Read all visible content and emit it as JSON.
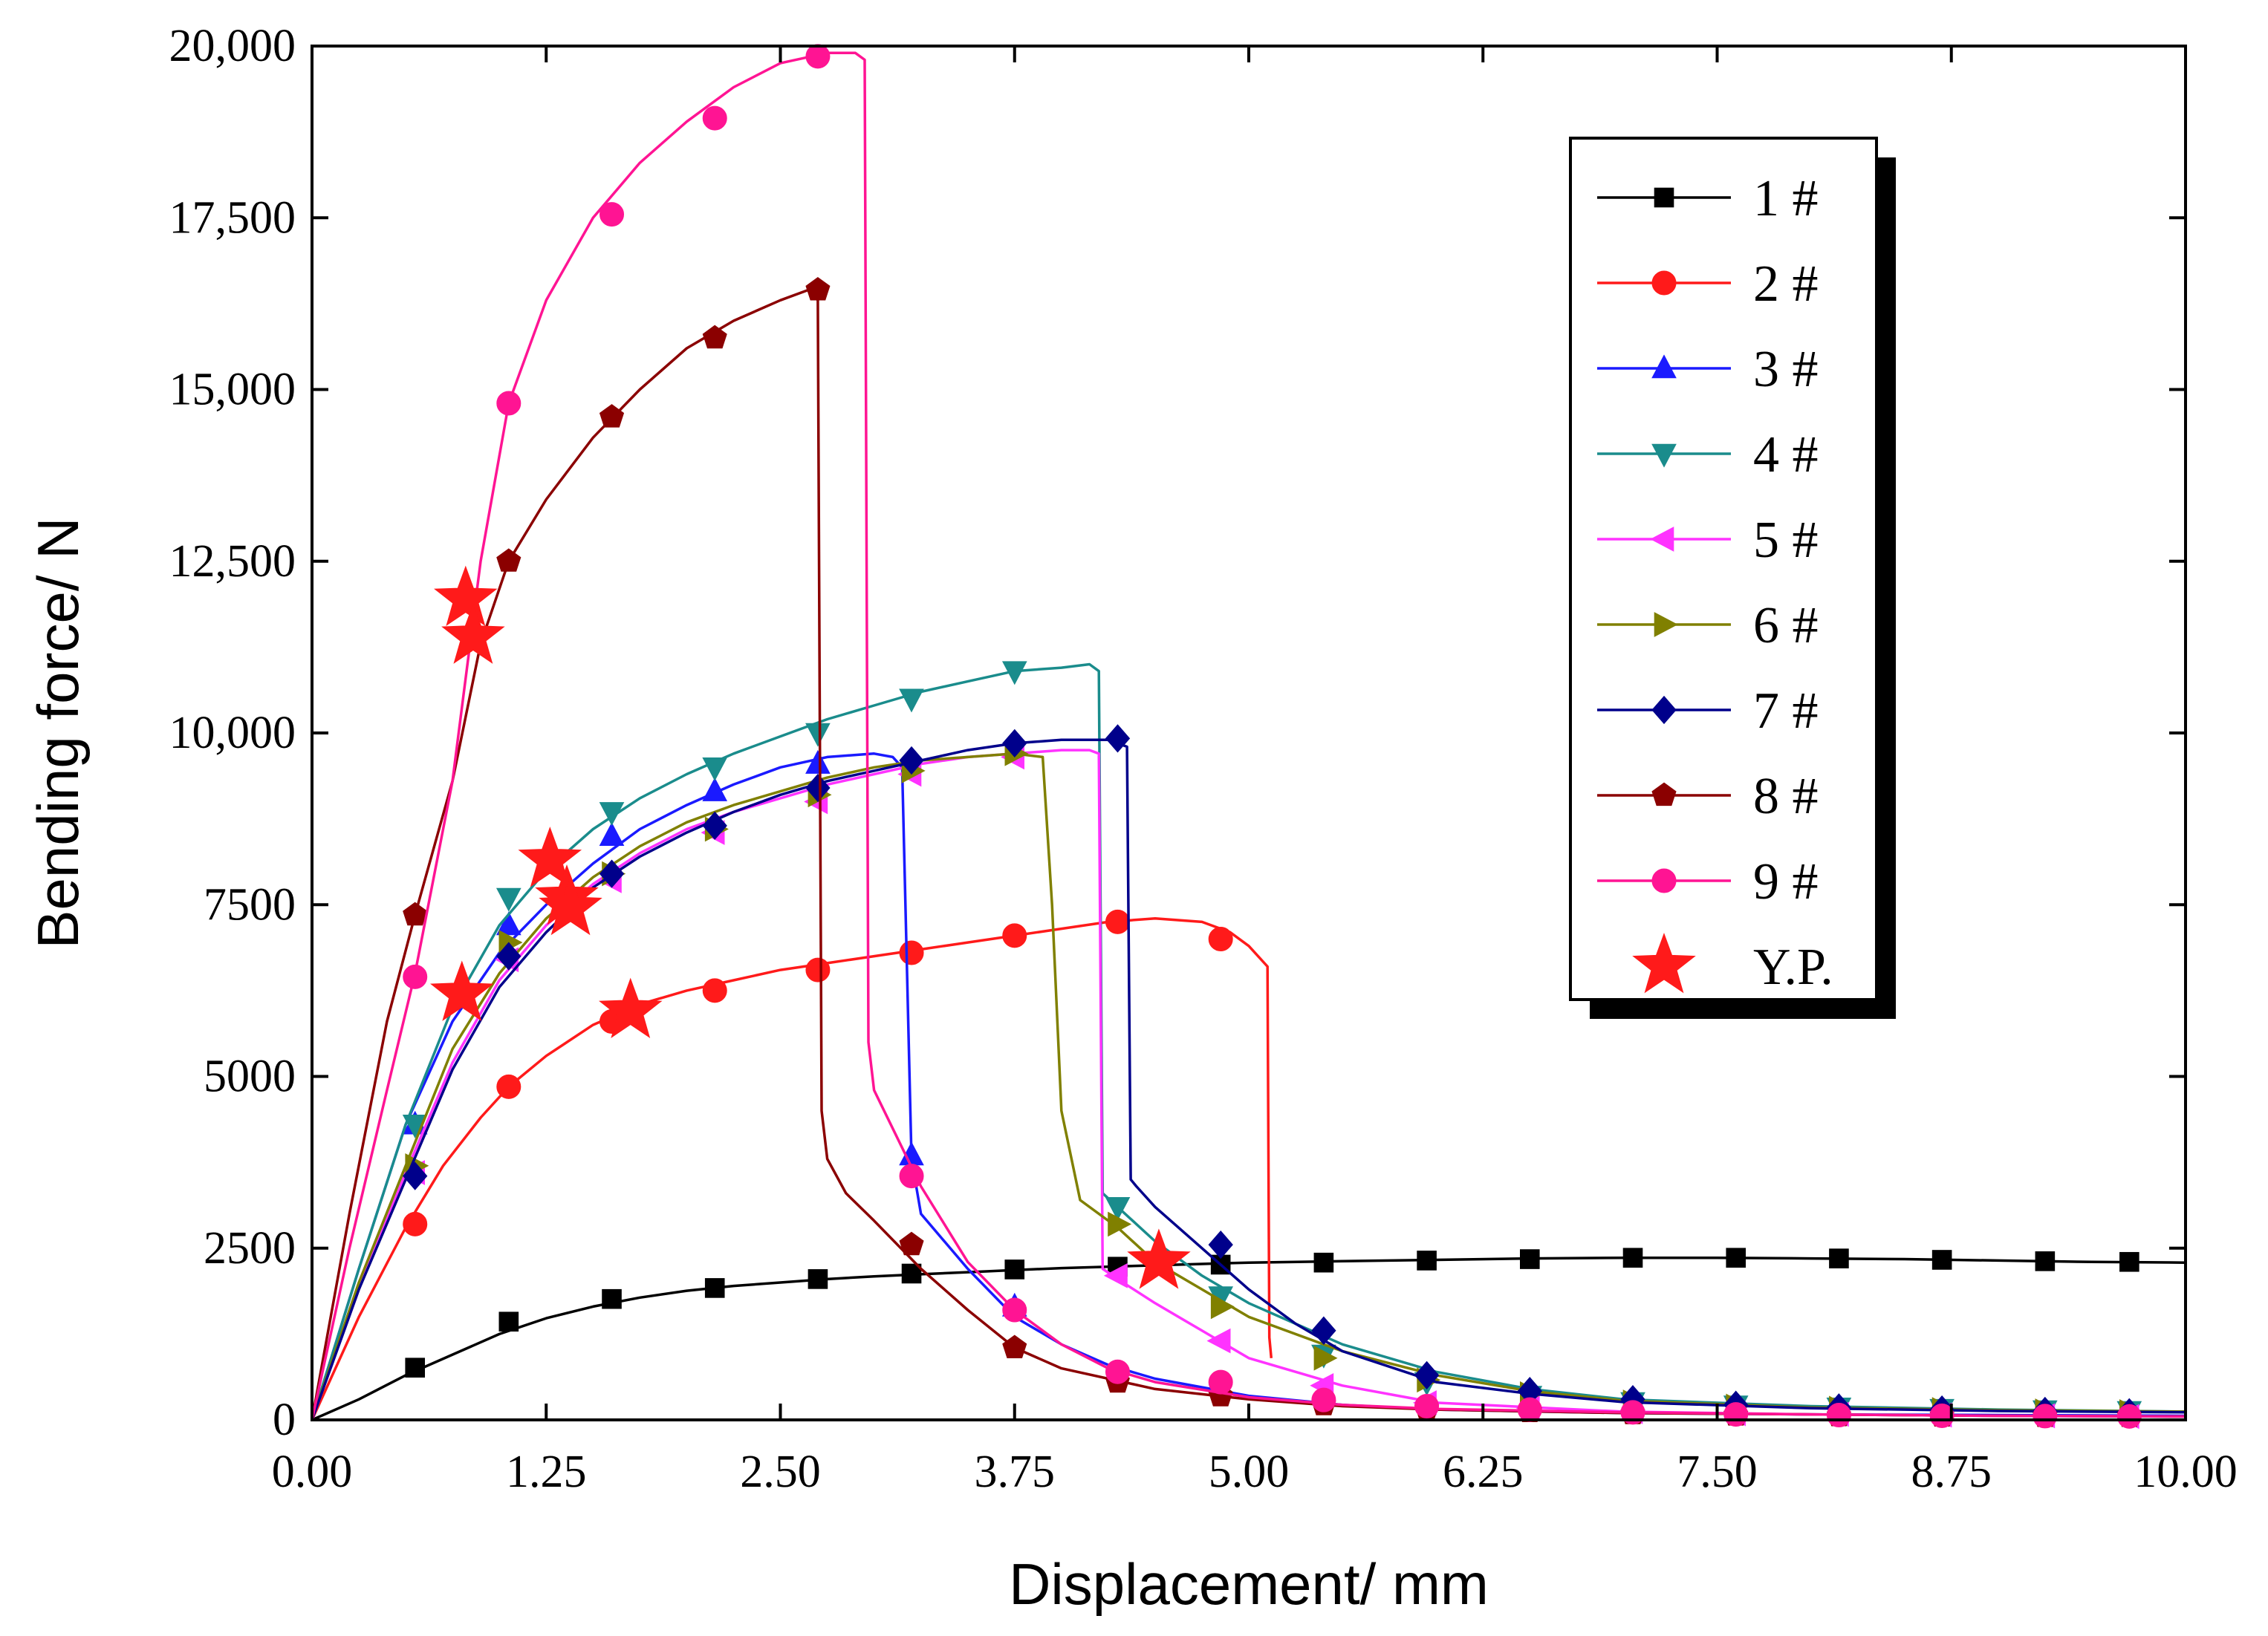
{
  "chart_data": {
    "type": "line",
    "xlabel": "Displacement/ mm",
    "ylabel": "Bending force/ N",
    "xlim": [
      0,
      10
    ],
    "ylim": [
      0,
      20000
    ],
    "xticks": [
      0,
      1.25,
      2.5,
      3.75,
      5,
      6.25,
      7.5,
      8.75,
      10
    ],
    "xtick_labels": [
      "0.00",
      "1.25",
      "2.50",
      "3.75",
      "5.00",
      "6.25",
      "7.50",
      "8.75",
      "10.00"
    ],
    "yticks": [
      0,
      2500,
      5000,
      7500,
      10000,
      12500,
      15000,
      17500,
      20000
    ],
    "ytick_labels": [
      "0",
      "2500",
      "5000",
      "7500",
      "10,000",
      "12,500",
      "15,000",
      "17,500",
      "20,000"
    ],
    "legend_position": "top-right",
    "series": [
      {
        "name": "1 #",
        "color": "#000000",
        "marker": "square",
        "x": [
          0,
          0.25,
          0.5,
          0.75,
          1.0,
          1.25,
          1.5,
          1.75,
          2.0,
          2.25,
          2.5,
          2.75,
          3.0,
          3.25,
          3.5,
          3.75,
          4.0,
          4.25,
          4.5,
          4.75,
          5.0,
          5.5,
          6.0,
          6.5,
          7.0,
          7.5,
          8.0,
          8.5,
          9.0,
          9.5,
          10.0
        ],
        "y": [
          0,
          300,
          650,
          950,
          1250,
          1480,
          1650,
          1780,
          1880,
          1950,
          2000,
          2050,
          2090,
          2120,
          2150,
          2180,
          2210,
          2230,
          2250,
          2270,
          2290,
          2310,
          2330,
          2350,
          2360,
          2360,
          2350,
          2340,
          2320,
          2300,
          2290
        ],
        "marker_x": [
          0.55,
          1.05,
          1.6,
          2.15,
          2.7,
          3.2,
          3.75,
          4.3,
          4.85,
          5.4,
          5.95,
          6.5,
          7.05,
          7.6,
          8.15,
          8.7,
          9.25,
          9.7
        ],
        "marker_y": [
          760,
          1430,
          1760,
          1920,
          2050,
          2130,
          2190,
          2230,
          2260,
          2290,
          2320,
          2340,
          2360,
          2360,
          2350,
          2330,
          2310,
          2300
        ]
      },
      {
        "name": "2 #",
        "color": "#ff1a1a",
        "marker": "circle",
        "x": [
          0,
          0.25,
          0.5,
          0.7,
          0.9,
          1.05,
          1.25,
          1.5,
          1.75,
          2.0,
          2.25,
          2.5,
          2.75,
          3.0,
          3.25,
          3.5,
          3.75,
          4.0,
          4.25,
          4.5,
          4.75,
          4.9,
          5.0,
          5.1,
          5.11,
          5.12
        ],
        "y": [
          0,
          1500,
          2800,
          3700,
          4400,
          4850,
          5300,
          5750,
          6050,
          6250,
          6400,
          6550,
          6650,
          6750,
          6850,
          6950,
          7050,
          7150,
          7250,
          7300,
          7250,
          7100,
          6900,
          6600,
          1200,
          900
        ],
        "marker_x": [
          0.55,
          1.05,
          1.6,
          2.15,
          2.7,
          3.2,
          3.75,
          4.3,
          4.85
        ],
        "marker_y": [
          2850,
          4850,
          5800,
          6250,
          6550,
          6800,
          7050,
          7250,
          7000
        ]
      },
      {
        "name": "3 #",
        "color": "#1a1aff",
        "marker": "triangle-up",
        "x": [
          0,
          0.25,
          0.5,
          0.75,
          1.0,
          1.25,
          1.5,
          1.75,
          2.0,
          2.25,
          2.5,
          2.75,
          3.0,
          3.1,
          3.15,
          3.2,
          3.25,
          3.5,
          3.75,
          4.0,
          4.25,
          4.5,
          5.0,
          5.5,
          6.0,
          7.0,
          8.0,
          9.0,
          10.0
        ],
        "y": [
          0,
          2200,
          4300,
          5800,
          6800,
          7500,
          8100,
          8600,
          8950,
          9250,
          9500,
          9650,
          9700,
          9650,
          9500,
          3800,
          3000,
          2200,
          1500,
          1100,
          800,
          600,
          350,
          220,
          150,
          100,
          80,
          70,
          60
        ],
        "marker_x": [
          0.55,
          1.05,
          1.6,
          2.15,
          2.7,
          3.2,
          3.75
        ],
        "marker_y": [
          4300,
          7200,
          8500,
          9150,
          9550,
          3850,
          1650
        ]
      },
      {
        "name": "4 #",
        "color": "#1a8c8c",
        "marker": "triangle-down",
        "x": [
          0,
          0.25,
          0.5,
          0.75,
          1.0,
          1.25,
          1.5,
          1.75,
          2.0,
          2.25,
          2.5,
          2.75,
          3.0,
          3.25,
          3.5,
          3.75,
          4.0,
          4.15,
          4.2,
          4.22,
          4.3,
          4.5,
          4.75,
          5.0,
          5.5,
          6.0,
          6.5,
          7.0,
          8.0,
          9.0,
          10.0
        ],
        "y": [
          0,
          2200,
          4300,
          6000,
          7200,
          8000,
          8600,
          9050,
          9400,
          9700,
          9950,
          10200,
          10400,
          10600,
          10750,
          10900,
          10950,
          11000,
          10900,
          3300,
          3100,
          2600,
          2100,
          1700,
          1100,
          700,
          450,
          300,
          200,
          150,
          120
        ],
        "marker_x": [
          0.55,
          1.05,
          1.6,
          2.15,
          2.7,
          3.2,
          3.75,
          4.3,
          4.85,
          5.4,
          5.95,
          6.5,
          7.05,
          7.6,
          8.15,
          8.7,
          9.25,
          9.7
        ],
        "marker_y": [
          4300,
          7600,
          8850,
          9500,
          10000,
          10500,
          10900,
          3100,
          1800,
          950,
          550,
          350,
          260,
          210,
          180,
          160,
          140,
          130
        ]
      },
      {
        "name": "5 #",
        "color": "#ff33ff",
        "marker": "triangle-left",
        "x": [
          0,
          0.25,
          0.5,
          0.75,
          1.0,
          1.25,
          1.5,
          1.75,
          2.0,
          2.25,
          2.5,
          2.75,
          3.0,
          3.25,
          3.5,
          3.75,
          4.0,
          4.15,
          4.2,
          4.22,
          4.3,
          4.5,
          4.75,
          5.0,
          5.5,
          6.0,
          7.0,
          8.0,
          9.0,
          10.0
        ],
        "y": [
          0,
          1900,
          3600,
          5200,
          6400,
          7200,
          7800,
          8250,
          8600,
          8850,
          9050,
          9250,
          9400,
          9550,
          9650,
          9700,
          9750,
          9750,
          9700,
          2200,
          2050,
          1700,
          1300,
          900,
          500,
          250,
          120,
          80,
          60,
          50
        ],
        "marker_x": [
          0.55,
          1.05,
          1.6,
          2.15,
          2.7,
          3.2,
          3.75,
          4.3,
          4.85,
          5.4,
          5.95,
          6.5,
          7.05,
          7.6,
          8.15,
          8.7,
          9.25,
          9.7
        ],
        "marker_y": [
          3600,
          6700,
          7850,
          8550,
          9000,
          9400,
          9650,
          2100,
          1150,
          500,
          250,
          170,
          120,
          90,
          80,
          70,
          60,
          50
        ]
      },
      {
        "name": "6 #",
        "color": "#808000",
        "marker": "triangle-right",
        "x": [
          0,
          0.25,
          0.5,
          0.75,
          1.0,
          1.25,
          1.5,
          1.75,
          2.0,
          2.25,
          2.5,
          2.75,
          3.0,
          3.25,
          3.5,
          3.75,
          3.9,
          3.95,
          4.0,
          4.1,
          4.3,
          4.5,
          4.75,
          5.0,
          5.5,
          6.0,
          6.5,
          7.0,
          8.0,
          9.0,
          10.0
        ],
        "y": [
          0,
          2000,
          3700,
          5400,
          6500,
          7300,
          7900,
          8350,
          8700,
          8950,
          9150,
          9350,
          9500,
          9600,
          9650,
          9700,
          9650,
          7500,
          4500,
          3200,
          2800,
          2300,
          1900,
          1500,
          1000,
          650,
          420,
          280,
          180,
          140,
          120
        ],
        "marker_x": [
          0.55,
          1.05,
          1.6,
          2.15,
          2.7,
          3.2,
          3.75,
          4.3,
          4.85,
          5.4,
          5.95,
          6.5,
          7.05,
          7.6,
          8.15,
          8.7,
          9.25,
          9.7
        ],
        "marker_y": [
          3700,
          6950,
          7950,
          8600,
          9100,
          9450,
          9700,
          2850,
          1650,
          900,
          580,
          380,
          260,
          200,
          170,
          150,
          130,
          120
        ]
      },
      {
        "name": "7 #",
        "color": "#00008b",
        "marker": "diamond",
        "x": [
          0,
          0.25,
          0.5,
          0.75,
          1.0,
          1.25,
          1.5,
          1.75,
          2.0,
          2.25,
          2.5,
          2.75,
          3.0,
          3.25,
          3.5,
          3.75,
          4.0,
          4.25,
          4.35,
          4.37,
          4.4,
          4.5,
          4.75,
          5.0,
          5.25,
          5.5,
          6.0,
          6.5,
          7.0,
          8.0,
          9.0,
          10.0
        ],
        "y": [
          0,
          1900,
          3500,
          5100,
          6300,
          7100,
          7750,
          8200,
          8550,
          8850,
          9100,
          9300,
          9450,
          9600,
          9750,
          9850,
          9900,
          9900,
          9800,
          3500,
          3400,
          3100,
          2500,
          1900,
          1400,
          1000,
          550,
          380,
          260,
          170,
          130,
          110
        ],
        "marker_x": [
          0.55,
          1.05,
          1.6,
          2.15,
          2.7,
          3.2,
          3.75,
          4.3,
          4.85,
          5.4,
          5.95,
          6.5,
          7.05,
          7.6,
          8.15,
          8.7,
          9.25,
          9.7
        ],
        "marker_y": [
          3550,
          6750,
          7950,
          8650,
          9200,
          9600,
          9850,
          9920,
          2550,
          1300,
          650,
          420,
          300,
          220,
          180,
          150,
          130,
          110
        ]
      },
      {
        "name": "8 #",
        "color": "#8b0000",
        "marker": "pentagon",
        "x": [
          0,
          0.2,
          0.4,
          0.55,
          0.75,
          0.9,
          1.05,
          1.25,
          1.5,
          1.75,
          2.0,
          2.25,
          2.5,
          2.65,
          2.7,
          2.72,
          2.75,
          2.85,
          3.0,
          3.25,
          3.5,
          3.75,
          4.0,
          4.5,
          5.0,
          5.5,
          6.0,
          7.0,
          8.0,
          9.0,
          10.0
        ],
        "y": [
          0,
          3000,
          5800,
          7350,
          9300,
          11300,
          12500,
          13400,
          14300,
          15000,
          15600,
          16000,
          16300,
          16450,
          16300,
          4500,
          3800,
          3300,
          2900,
          2200,
          1600,
          1050,
          750,
          450,
          300,
          200,
          150,
          100,
          80,
          60,
          50
        ],
        "marker_x": [
          0.55,
          1.05,
          1.6,
          2.15,
          2.7,
          3.2,
          3.75,
          4.3,
          4.85,
          5.4,
          5.95,
          6.5,
          7.05,
          7.6,
          8.15,
          8.7,
          9.25,
          9.7
        ],
        "marker_y": [
          7350,
          12500,
          14600,
          15750,
          16450,
          2550,
          1050,
          550,
          350,
          220,
          160,
          120,
          90,
          70,
          60,
          55,
          50,
          50
        ]
      },
      {
        "name": "9 #",
        "color": "#ff1493",
        "marker": "circle",
        "x": [
          0,
          0.2,
          0.4,
          0.55,
          0.75,
          0.9,
          1.05,
          1.25,
          1.5,
          1.75,
          2.0,
          2.25,
          2.5,
          2.75,
          2.9,
          2.95,
          2.97,
          3.0,
          3.25,
          3.5,
          3.75,
          4.0,
          4.25,
          4.5,
          5.0,
          5.5,
          6.0,
          7.0,
          8.0,
          9.0,
          10.0
        ],
        "y": [
          0,
          2500,
          4800,
          6500,
          9300,
          12500,
          14800,
          16300,
          17500,
          18300,
          18900,
          19400,
          19750,
          19900,
          19900,
          19800,
          5500,
          4800,
          3400,
          2300,
          1600,
          1100,
          750,
          550,
          330,
          220,
          160,
          110,
          80,
          60,
          50
        ],
        "marker_x": [
          0.55,
          1.05,
          1.6,
          2.15,
          2.7,
          3.2,
          3.75,
          4.3,
          4.85,
          5.4,
          5.95,
          6.5,
          7.05,
          7.6,
          8.15,
          8.7,
          9.25,
          9.7
        ],
        "marker_y": [
          6450,
          14800,
          17550,
          18950,
          19850,
          3550,
          1600,
          700,
          550,
          290,
          200,
          150,
          110,
          80,
          70,
          60,
          55,
          50
        ]
      },
      {
        "name": "Y.P.",
        "color": "#ff1a1a",
        "marker": "star",
        "scatter_only": true,
        "x": [
          0.82,
          0.86,
          0.8,
          1.27,
          1.36,
          1.38,
          1.7,
          4.52
        ],
        "y": [
          11950,
          11400,
          6200,
          8150,
          7600,
          7450,
          5950,
          2300
        ]
      }
    ]
  }
}
